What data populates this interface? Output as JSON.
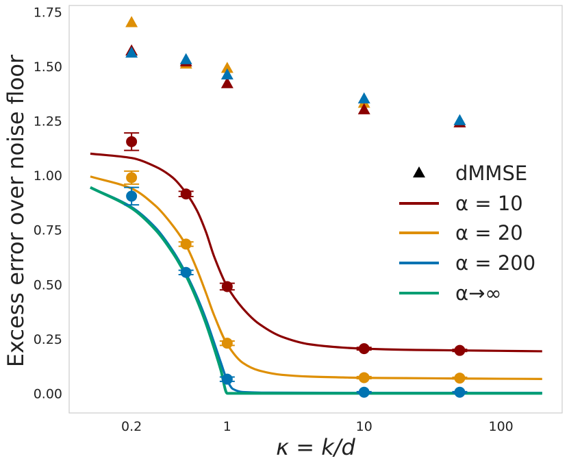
{
  "chart_data": {
    "type": "scatter",
    "xlabel": "κ = k/d",
    "ylabel": "Excess error over noise floor",
    "x_scale": "log",
    "xlim": [
      0.07,
      280
    ],
    "ylim": [
      -0.09,
      1.78
    ],
    "x_ticks": [
      0.2,
      1,
      10,
      100
    ],
    "x_tick_labels": [
      "0.2",
      "1",
      "10",
      "100"
    ],
    "y_ticks": [
      0.0,
      0.25,
      0.5,
      0.75,
      1.0,
      1.25,
      1.5,
      1.75
    ],
    "y_tick_labels": [
      "0.00",
      "0.25",
      "0.50",
      "0.75",
      "1.00",
      "1.25",
      "1.50",
      "1.75"
    ],
    "grid": false,
    "legend_position": "right",
    "colors": {
      "alpha10": "#8b0000",
      "alpha20": "#de8f05",
      "alpha200": "#0173b2",
      "alpha_inf": "#029e73",
      "dmmse_marker": "#000000",
      "frame": "#cccccc"
    },
    "legend": [
      {
        "kind": "marker",
        "label": "dMMSE",
        "color": "#000000"
      },
      {
        "kind": "line",
        "label": "α = 10",
        "color": "#8b0000"
      },
      {
        "kind": "line",
        "label": "α = 20",
        "color": "#de8f05"
      },
      {
        "kind": "line",
        "label": "α = 200",
        "color": "#0173b2"
      },
      {
        "kind": "line",
        "label": "α→∞",
        "color": "#029e73"
      }
    ],
    "series": [
      {
        "name": "α = 10",
        "color": "#8b0000",
        "curve": {
          "x": [
            0.1,
            0.2,
            0.3,
            0.4,
            0.5,
            0.6,
            0.7,
            0.8,
            1.0,
            1.3,
            1.7,
            2.5,
            4,
            7,
            10,
            20,
            50,
            100,
            200
          ],
          "y": [
            1.1,
            1.08,
            1.04,
            0.99,
            0.92,
            0.84,
            0.74,
            0.63,
            0.49,
            0.39,
            0.32,
            0.26,
            0.225,
            0.21,
            0.205,
            0.2,
            0.197,
            0.195,
            0.193
          ]
        },
        "points": [
          {
            "x": 0.2,
            "y": 1.155,
            "err": 0.04
          },
          {
            "x": 0.5,
            "y": 0.915,
            "err": 0.012
          },
          {
            "x": 1.0,
            "y": 0.49,
            "err": 0.015
          },
          {
            "x": 10,
            "y": 0.205,
            "err": 0.006
          },
          {
            "x": 50,
            "y": 0.197,
            "err": 0.005
          }
        ],
        "dmmse": [
          {
            "x": 0.2,
            "y": 1.57
          },
          {
            "x": 0.5,
            "y": 1.52
          },
          {
            "x": 1.0,
            "y": 1.42
          },
          {
            "x": 10,
            "y": 1.3
          },
          {
            "x": 50,
            "y": 1.24
          }
        ]
      },
      {
        "name": "α = 20",
        "color": "#de8f05",
        "curve": {
          "x": [
            0.1,
            0.2,
            0.3,
            0.4,
            0.5,
            0.6,
            0.7,
            0.8,
            1.0,
            1.3,
            1.7,
            2.5,
            4,
            7,
            10,
            20,
            50,
            100,
            200
          ],
          "y": [
            0.995,
            0.94,
            0.86,
            0.77,
            0.68,
            0.57,
            0.46,
            0.36,
            0.225,
            0.14,
            0.105,
            0.085,
            0.077,
            0.073,
            0.071,
            0.07,
            0.068,
            0.067,
            0.066
          ]
        },
        "points": [
          {
            "x": 0.2,
            "y": 0.99,
            "err": 0.03
          },
          {
            "x": 0.5,
            "y": 0.685,
            "err": 0.01
          },
          {
            "x": 1.0,
            "y": 0.23,
            "err": 0.01
          },
          {
            "x": 10,
            "y": 0.072,
            "err": 0.005
          },
          {
            "x": 50,
            "y": 0.07,
            "err": 0.004
          }
        ],
        "dmmse": [
          {
            "x": 0.2,
            "y": 1.7
          },
          {
            "x": 0.5,
            "y": 1.51
          },
          {
            "x": 1.0,
            "y": 1.49
          },
          {
            "x": 10,
            "y": 1.33
          },
          {
            "x": 50,
            "y": 1.24
          }
        ]
      },
      {
        "name": "α = 200",
        "color": "#0173b2",
        "curve": {
          "x": [
            0.1,
            0.2,
            0.3,
            0.4,
            0.5,
            0.6,
            0.7,
            0.8,
            0.9,
            1.0,
            1.1,
            1.3,
            2,
            10,
            200
          ],
          "y": [
            0.945,
            0.855,
            0.76,
            0.655,
            0.55,
            0.445,
            0.34,
            0.235,
            0.14,
            0.06,
            0.02,
            0.006,
            0.003,
            0.002,
            0.002
          ]
        },
        "points": [
          {
            "x": 0.2,
            "y": 0.905,
            "err": 0.04
          },
          {
            "x": 0.5,
            "y": 0.555,
            "err": 0.01
          },
          {
            "x": 1.0,
            "y": 0.065,
            "err": 0.01
          },
          {
            "x": 10,
            "y": 0.005,
            "err": 0.003
          },
          {
            "x": 50,
            "y": 0.005,
            "err": 0.003
          }
        ],
        "dmmse": [
          {
            "x": 0.2,
            "y": 1.56
          },
          {
            "x": 0.5,
            "y": 1.53
          },
          {
            "x": 1.0,
            "y": 1.46
          },
          {
            "x": 10,
            "y": 1.35
          },
          {
            "x": 50,
            "y": 1.25
          }
        ]
      },
      {
        "name": "α→∞",
        "color": "#029e73",
        "curve": {
          "x": [
            0.1,
            0.2,
            0.3,
            0.4,
            0.5,
            0.6,
            0.7,
            0.8,
            0.9,
            1.0,
            200
          ],
          "y": [
            0.945,
            0.85,
            0.75,
            0.645,
            0.54,
            0.43,
            0.32,
            0.21,
            0.105,
            0.0,
            0.0
          ]
        }
      }
    ]
  }
}
